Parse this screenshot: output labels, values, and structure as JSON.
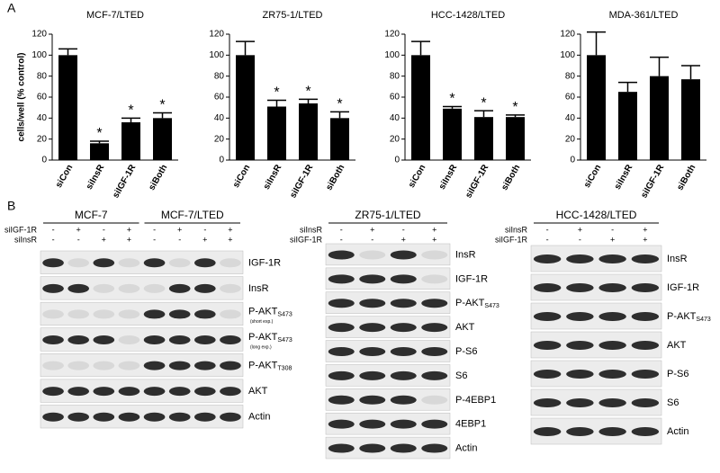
{
  "panel_labels": {
    "a": "A",
    "b": "B"
  },
  "chart_data": [
    {
      "type": "bar",
      "title": "MCF-7/LTED",
      "y_label": "cells/well (% control)",
      "categories": [
        "siCon",
        "siInsR",
        "siIGF-1R",
        "siBoth"
      ],
      "values": [
        100,
        16,
        36,
        40
      ],
      "errors": [
        6,
        2,
        4,
        5
      ],
      "significance": [
        null,
        "*",
        "*",
        "*"
      ],
      "color": "#000000",
      "ylim": [
        0,
        120
      ],
      "yticks": [
        0,
        20,
        40,
        60,
        80,
        100,
        120
      ]
    },
    {
      "type": "bar",
      "title": "ZR75-1/LTED",
      "categories": [
        "siCon",
        "siInsR",
        "siIGF-1R",
        "siBoth"
      ],
      "values": [
        100,
        51,
        54,
        40
      ],
      "errors": [
        13,
        6,
        4,
        6
      ],
      "significance": [
        null,
        "*",
        "*",
        "*"
      ],
      "color": "#000000",
      "ylim": [
        0,
        120
      ],
      "yticks": [
        0,
        20,
        40,
        60,
        80,
        100,
        120
      ]
    },
    {
      "type": "bar",
      "title": "HCC-1428/LTED",
      "categories": [
        "siCon",
        "siInsR",
        "siIGF-1R",
        "siBoth"
      ],
      "values": [
        100,
        49,
        41,
        41
      ],
      "errors": [
        13,
        2,
        6,
        2
      ],
      "significance": [
        null,
        "*",
        "*",
        "*"
      ],
      "color": "#000000",
      "ylim": [
        0,
        120
      ],
      "yticks": [
        0,
        20,
        40,
        60,
        80,
        100,
        120
      ]
    },
    {
      "type": "bar",
      "title": "MDA-361/LTED",
      "categories": [
        "siCon",
        "siInsR",
        "siIGF-1R",
        "siBoth"
      ],
      "values": [
        100,
        65,
        80,
        77
      ],
      "errors": [
        22,
        9,
        18,
        13
      ],
      "significance": [
        null,
        null,
        null,
        null
      ],
      "color": "#000000",
      "ylim": [
        0,
        120
      ],
      "yticks": [
        0,
        20,
        40,
        60,
        80,
        100,
        120
      ]
    }
  ],
  "blots": [
    {
      "cell_lines": [
        "MCF-7",
        "MCF-7/LTED"
      ],
      "treatments": [
        {
          "name": "siIGF-1R",
          "signs": [
            "-",
            "+",
            "-",
            "+",
            "-",
            "+",
            "-",
            "+"
          ]
        },
        {
          "name": "siInsR",
          "signs": [
            "-",
            "-",
            "+",
            "+",
            "-",
            "-",
            "+",
            "+"
          ]
        }
      ],
      "rows": [
        {
          "text": "IGF-1R"
        },
        {
          "text": "InsR"
        },
        {
          "text": "P-AKT",
          "sub": "S473",
          "note": "(short exp.)"
        },
        {
          "text": "P-AKT",
          "sub": "S473",
          "note": "(long exp.)"
        },
        {
          "text": "P-AKT",
          "sub": "T308"
        },
        {
          "text": "AKT"
        },
        {
          "text": "Actin"
        }
      ]
    },
    {
      "cell_lines": [
        "ZR75-1/LTED"
      ],
      "treatments": [
        {
          "name": "siInsR",
          "signs": [
            "-",
            "+",
            "-",
            "+"
          ]
        },
        {
          "name": "siIGF-1R",
          "signs": [
            "-",
            "-",
            "+",
            "+"
          ]
        }
      ],
      "rows": [
        {
          "text": "InsR"
        },
        {
          "text": "IGF-1R"
        },
        {
          "text": "P-AKT",
          "sub": "S473"
        },
        {
          "text": "AKT"
        },
        {
          "text": "P-S6"
        },
        {
          "text": "S6"
        },
        {
          "text": "P-4EBP1"
        },
        {
          "text": "4EBP1"
        },
        {
          "text": "Actin"
        }
      ]
    },
    {
      "cell_lines": [
        "HCC-1428/LTED"
      ],
      "treatments": [
        {
          "name": "siInsR",
          "signs": [
            "-",
            "+",
            "-",
            "+"
          ]
        },
        {
          "name": "siIGF-1R",
          "signs": [
            "-",
            "-",
            "+",
            "+"
          ]
        }
      ],
      "rows": [
        {
          "text": "InsR"
        },
        {
          "text": "IGF-1R"
        },
        {
          "text": "P-AKT",
          "sub": "S473"
        },
        {
          "text": "AKT"
        },
        {
          "text": "P-S6"
        },
        {
          "text": "S6"
        },
        {
          "text": "Actin"
        }
      ]
    }
  ]
}
